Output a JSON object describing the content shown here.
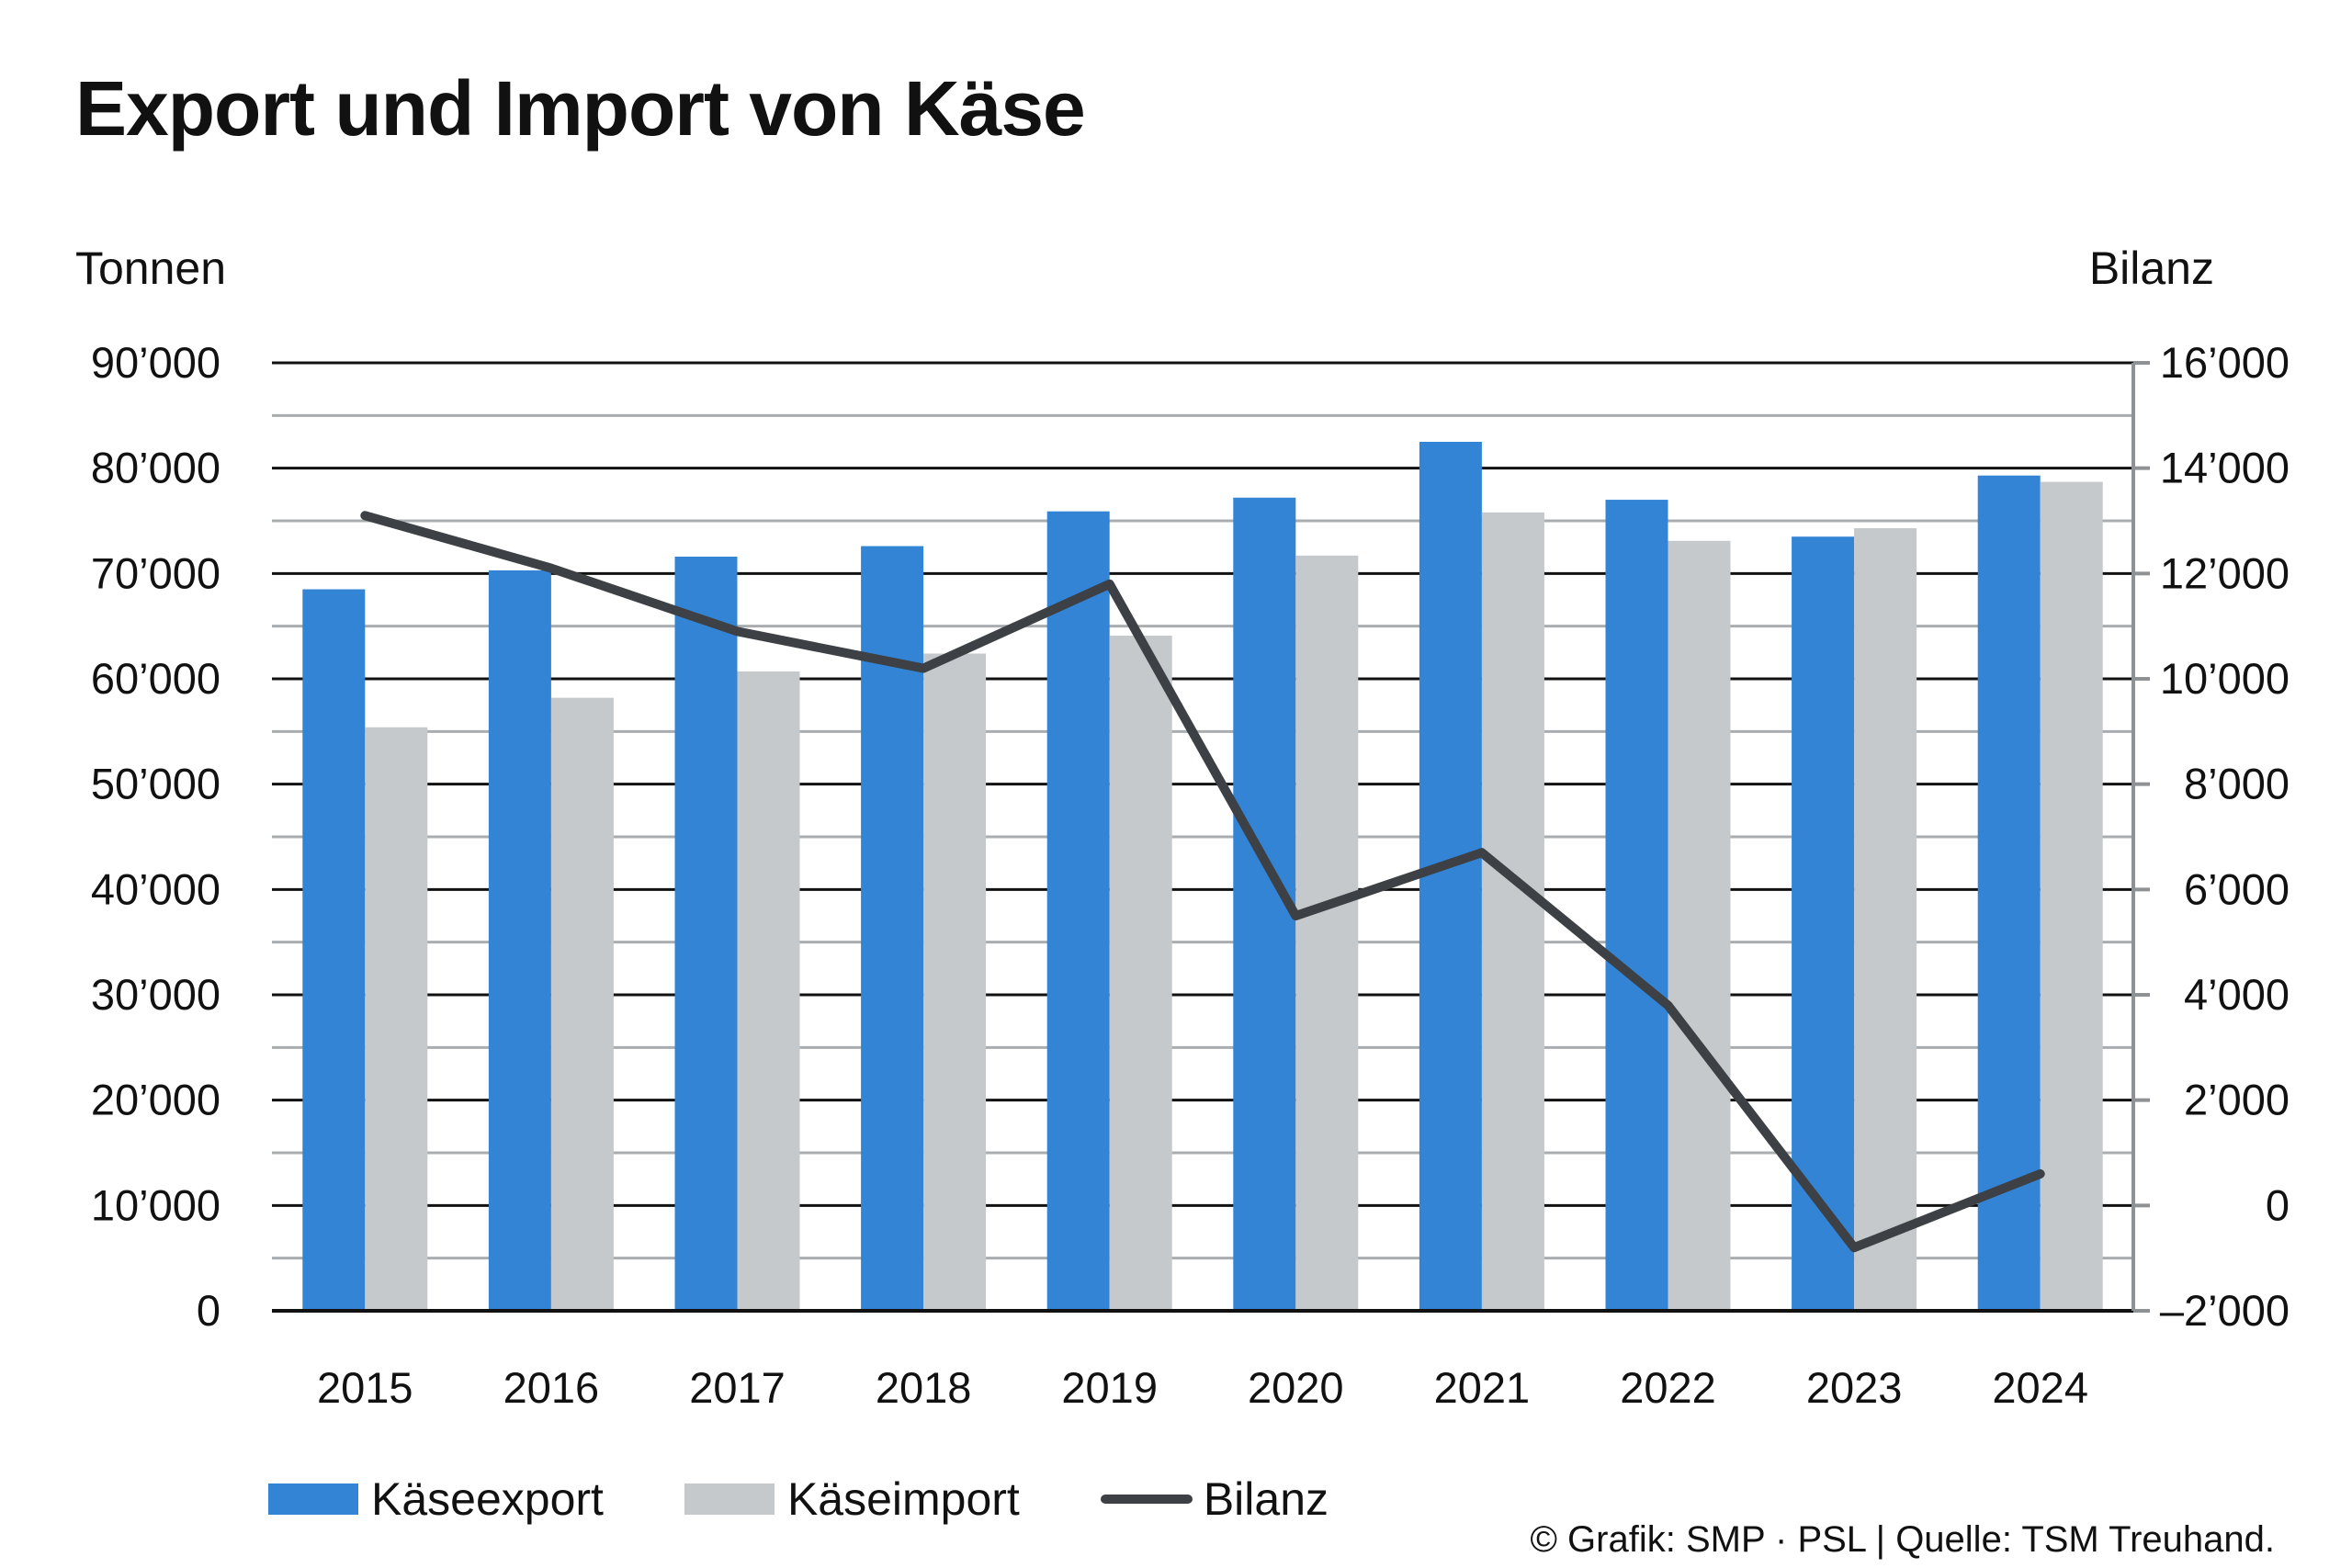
{
  "chart_data": {
    "type": "bar",
    "title": "Export und Import von Käse",
    "left_axis_label": "Tonnen",
    "right_axis_label": "Bilanz",
    "categories": [
      "2015",
      "2016",
      "2017",
      "2018",
      "2019",
      "2020",
      "2021",
      "2022",
      "2023",
      "2024"
    ],
    "series": [
      {
        "name": "Käseexport",
        "type": "bar",
        "axis": "left",
        "color": "#3484D6",
        "values": [
          68500,
          70300,
          71600,
          72600,
          75900,
          77200,
          82500,
          77000,
          73500,
          79300
        ]
      },
      {
        "name": "Käseimport",
        "type": "bar",
        "axis": "left",
        "color": "#C5C9CC",
        "values": [
          55400,
          58200,
          60700,
          62400,
          64100,
          71700,
          75800,
          73100,
          74300,
          78700
        ]
      },
      {
        "name": "Bilanz",
        "type": "line",
        "axis": "right",
        "color": "#3D4145",
        "values": [
          13100,
          12100,
          10900,
          10200,
          11800,
          5500,
          6700,
          3800,
          -800,
          600
        ]
      }
    ],
    "left_axis": {
      "min": 0,
      "max": 90000,
      "ticks": [
        "0",
        "10’000",
        "20’000",
        "30’000",
        "40’000",
        "50’000",
        "60’000",
        "70’000",
        "80’000",
        "90’000"
      ]
    },
    "right_axis": {
      "min": -2000,
      "max": 16000,
      "ticks": [
        "–2’000",
        "0",
        "2’000",
        "4’000",
        "6’000",
        "8’000",
        "10’000",
        "12’000",
        "14’000",
        "16’000"
      ]
    },
    "grid": true,
    "legend_position": "bottom-left",
    "credits": "© Grafik: SMP · PSL | Quelle: TSM Treuhand."
  }
}
